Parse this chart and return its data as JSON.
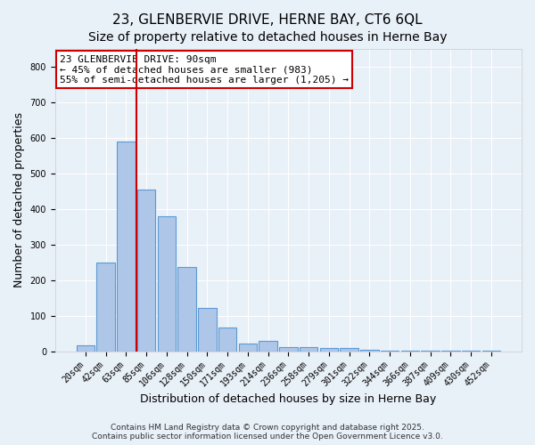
{
  "title": "23, GLENBERVIE DRIVE, HERNE BAY, CT6 6QL",
  "subtitle": "Size of property relative to detached houses in Herne Bay",
  "xlabel": "Distribution of detached houses by size in Herne Bay",
  "ylabel": "Number of detached properties",
  "categories": [
    "20sqm",
    "42sqm",
    "63sqm",
    "85sqm",
    "106sqm",
    "128sqm",
    "150sqm",
    "171sqm",
    "193sqm",
    "214sqm",
    "236sqm",
    "258sqm",
    "279sqm",
    "301sqm",
    "322sqm",
    "344sqm",
    "366sqm",
    "387sqm",
    "409sqm",
    "430sqm",
    "452sqm"
  ],
  "values": [
    18,
    250,
    590,
    455,
    380,
    237,
    122,
    67,
    22,
    30,
    12,
    12,
    10,
    10,
    5,
    3,
    3,
    3,
    3,
    3,
    3
  ],
  "bar_color": "#aec6e8",
  "bar_edge_color": "#5b9bd5",
  "vline_color": "#cc0000",
  "vline_x": 2.5,
  "annotation_text": "23 GLENBERVIE DRIVE: 90sqm\n← 45% of detached houses are smaller (983)\n55% of semi-detached houses are larger (1,205) →",
  "annotation_box_color": "#ffffff",
  "annotation_box_edge_color": "#cc0000",
  "ylim": [
    0,
    850
  ],
  "yticks": [
    0,
    100,
    200,
    300,
    400,
    500,
    600,
    700,
    800
  ],
  "background_color": "#e8f0f8",
  "grid_color": "#ffffff",
  "footer_line1": "Contains HM Land Registry data © Crown copyright and database right 2025.",
  "footer_line2": "Contains public sector information licensed under the Open Government Licence v3.0.",
  "title_fontsize": 11,
  "subtitle_fontsize": 10,
  "xlabel_fontsize": 9,
  "ylabel_fontsize": 9,
  "tick_fontsize": 7,
  "footer_fontsize": 6.5,
  "annotation_fontsize": 8
}
